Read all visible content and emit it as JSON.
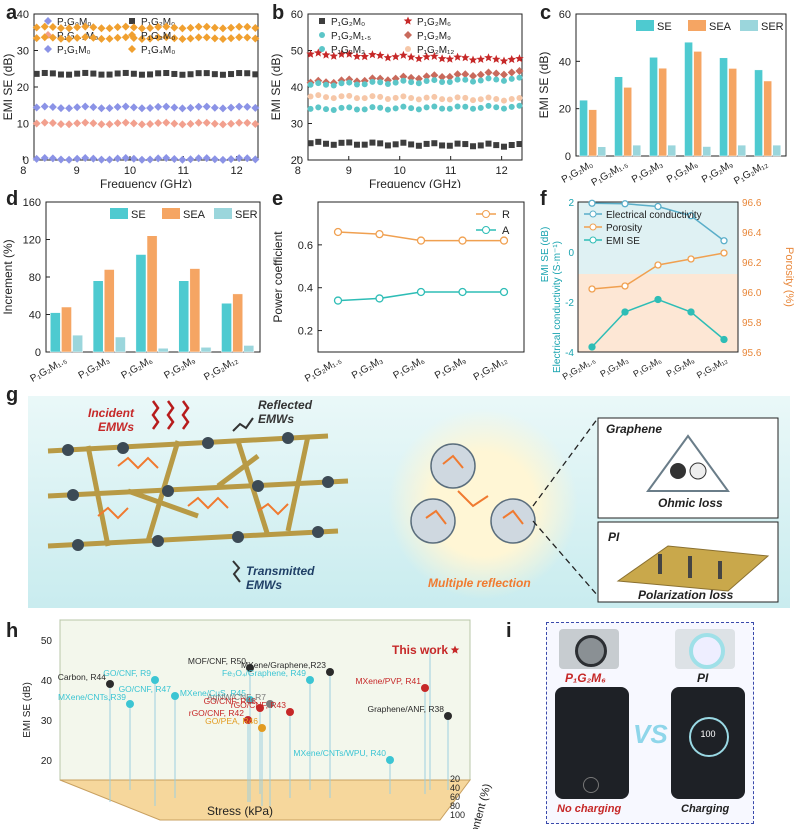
{
  "panel_labels": {
    "a": "a",
    "b": "b",
    "c": "c",
    "d": "d",
    "e": "e",
    "f": "f",
    "g": "g",
    "h": "h",
    "i": "i"
  },
  "colors": {
    "diamond_blue": "#8b93e6",
    "square_dark": "#3d3d3d",
    "diamond_pink": "#f2a08e",
    "diamond_orange": "#f0a030",
    "star_red": "#c62828",
    "teal": "#5cc6c8",
    "rose": "#c96a5c",
    "peach": "#f6c7a8",
    "se": "#4ecad0",
    "sea": "#f5a563",
    "ser": "#9bd6dc",
    "r_orange": "#f0a050",
    "a_teal": "#2ebdb6",
    "h_dark": "#2b2b2b",
    "h_red": "#c62828",
    "h_cyan": "#3cc5d3",
    "h_orange": "#e29b20",
    "h_grey": "#7a7a7a"
  },
  "chart_data": [
    {
      "id": "a",
      "type": "scatter",
      "xlabel": "Frequency (GHz)",
      "ylabel": "EMI SE (dB)",
      "xlim": [
        8.2,
        12.4
      ],
      "ylim": [
        0,
        40
      ],
      "xticks": [
        "8",
        "9",
        "10",
        "11",
        "12"
      ],
      "yticks": [
        "0",
        "10",
        "20",
        "30",
        "40"
      ],
      "series": [
        {
          "name": "P₁G₀M₀",
          "values": [
            0.3
          ],
          "marker": "diamond",
          "color": "#8b93e6"
        },
        {
          "name": "P₁G₂M₀",
          "values": [
            23.6
          ],
          "marker": "square",
          "color": "#3d3d3d"
        },
        {
          "name": "P₁G₀.₅M₀",
          "values": [
            10.0
          ],
          "marker": "diamond",
          "color": "#f2a08e"
        },
        {
          "name": "P₁G₃M₀",
          "values": [
            33.4
          ],
          "marker": "diamond",
          "color": "#f0a030"
        },
        {
          "name": "P₁G₁M₀",
          "values": [
            14.4
          ],
          "marker": "diamond",
          "color": "#8b93e6"
        },
        {
          "name": "P₁G₄M₀",
          "values": [
            36.3
          ],
          "marker": "diamond",
          "color": "#f0a030"
        }
      ]
    },
    {
      "id": "b",
      "type": "scatter",
      "xlabel": "Frequency (GHz)",
      "ylabel": "EMI SE (dB)",
      "xlim": [
        8.2,
        12.4
      ],
      "ylim": [
        20,
        60
      ],
      "xticks": [
        "8",
        "9",
        "10",
        "11",
        "12"
      ],
      "yticks": [
        "20",
        "30",
        "40",
        "50",
        "60"
      ],
      "series": [
        {
          "name": "P₁G₂M₀",
          "start": 24.6,
          "end": 24.0,
          "marker": "square",
          "color": "#3d3d3d"
        },
        {
          "name": "P₁G₂M₆",
          "start": 49.0,
          "end": 47.4,
          "marker": "star",
          "color": "#c62828"
        },
        {
          "name": "P₁G₂M₁.₅",
          "start": 34.0,
          "end": 34.5,
          "marker": "circle",
          "color": "#5cc6c8"
        },
        {
          "name": "P₁G₂M₉",
          "start": 41.2,
          "end": 44.0,
          "marker": "diamond",
          "color": "#c96a5c"
        },
        {
          "name": "P₁G₂M₃",
          "start": 40.6,
          "end": 42.2,
          "marker": "circle",
          "color": "#5cc6c8"
        },
        {
          "name": "P₁G₂M₁₂",
          "start": 37.4,
          "end": 36.6,
          "marker": "circle",
          "color": "#f6c7a8"
        }
      ]
    },
    {
      "id": "c",
      "type": "bar",
      "ylabel": "EMI SE (dB)",
      "ylim": [
        0,
        60
      ],
      "yticks": [
        "0",
        "20",
        "40",
        "60"
      ],
      "categories": [
        "P₁G₂M₀",
        "P₁G₂M₁.₅",
        "P₁G₂M₃",
        "P₁G₂M₆",
        "P₁G₂M₉",
        "P₁G₂M₁₂"
      ],
      "series": [
        {
          "name": "SE",
          "values": [
            23.6,
            33.5,
            41.7,
            48.1,
            41.5,
            36.4
          ]
        },
        {
          "name": "SEA",
          "values": [
            19.6,
            29.0,
            37.1,
            44.2,
            37.0,
            31.7
          ]
        },
        {
          "name": "SER",
          "values": [
            3.9,
            4.6,
            4.6,
            4.0,
            4.6,
            4.6
          ]
        }
      ]
    },
    {
      "id": "d",
      "type": "bar",
      "ylabel": "Increment (%)",
      "ylim": [
        0,
        160
      ],
      "yticks": [
        "0",
        "40",
        "80",
        "120",
        "160"
      ],
      "categories": [
        "P₁G₂M₁.₅",
        "P₁G₂M₃",
        "P₁G₂M₆",
        "P₁G₂M₉",
        "P₁G₂M₁₂"
      ],
      "series": [
        {
          "name": "SE",
          "values": [
            42,
            76,
            104,
            76,
            52
          ]
        },
        {
          "name": "SEA",
          "values": [
            48,
            88,
            124,
            89,
            62
          ]
        },
        {
          "name": "SER",
          "values": [
            18,
            16,
            4,
            5,
            7
          ]
        }
      ]
    },
    {
      "id": "e",
      "type": "line",
      "ylabel": "Power coefficient",
      "ylim": [
        0.1,
        0.8
      ],
      "yticks": [
        "0.2",
        "0.4",
        "0.6"
      ],
      "categories": [
        "P₁G₂M₁.₅",
        "P₁G₂M₃",
        "P₁G₂M₆",
        "P₁G₂M₉",
        "P₁G₂M₁₂"
      ],
      "series": [
        {
          "name": "R",
          "values": [
            0.66,
            0.65,
            0.62,
            0.62,
            0.62
          ]
        },
        {
          "name": "A",
          "values": [
            0.34,
            0.35,
            0.38,
            0.38,
            0.38
          ]
        }
      ]
    },
    {
      "id": "f",
      "type": "line",
      "ylabel": "Electrical conductivity (S·m⁻¹)",
      "ylabel2": "Porosity (%)",
      "ylabel3": "EMI SE (dB)",
      "ylim": [
        -4,
        2
      ],
      "yticks": [
        "-4",
        "-2",
        "0",
        "2"
      ],
      "ylim2": [
        95.6,
        96.6
      ],
      "yticks2": [
        "95.6",
        "95.8",
        "96.0",
        "96.2",
        "96.4",
        "96.6"
      ],
      "categories": [
        "P₁G₂M₁.₅",
        "P₁G₂M₃",
        "P₁G₂M₆",
        "P₁G₂M₉",
        "P₁G₂M₁₂"
      ],
      "series": [
        {
          "name": "Electrical conductivity",
          "values": [
            1.95,
            1.93,
            1.82,
            1.45,
            0.45
          ],
          "axis": "left"
        },
        {
          "name": "Porosity",
          "values": [
            96.02,
            96.04,
            96.18,
            96.22,
            96.26
          ],
          "axis": "right"
        },
        {
          "name": "EMI SE",
          "values": [
            -3.8,
            -2.4,
            -1.9,
            -2.4,
            -3.5
          ],
          "axis": "left"
        }
      ]
    },
    {
      "id": "h",
      "type": "scatter",
      "zlabel": "EMI SE (dB)",
      "xlabel": "Stress (kPa)",
      "ylabel": "Filler content (%)",
      "zticks": [
        "20",
        "30",
        "40",
        "50"
      ],
      "yticks": [
        "100",
        "80",
        "60",
        "40",
        "20"
      ],
      "points": [
        {
          "label": "This work",
          "value": 50,
          "color": "#c62828"
        },
        {
          "label": "MOF/CNF, R50",
          "value": 45,
          "color": "#2b2b2b"
        },
        {
          "label": "MXene/Graphene,R23",
          "value": 44,
          "color": "#2b2b2b"
        },
        {
          "label": "Carbon, R44",
          "value": 41,
          "color": "#2b2b2b"
        },
        {
          "label": "GO/CNF, R9",
          "value": 42,
          "color": "#3cc5d3"
        },
        {
          "label": "Fe₃O₄/Graphene, R49",
          "value": 42,
          "color": "#3cc5d3"
        },
        {
          "label": "MXene/PVP, R41",
          "value": 40,
          "color": "#c62828"
        },
        {
          "label": "GO/CNF, R47",
          "value": 38,
          "color": "#3cc5d3"
        },
        {
          "label": "MXene/CuS, R45",
          "value": 37,
          "color": "#3cc5d3"
        },
        {
          "label": "AgNW/CNF, R7",
          "value": 36,
          "color": "#7a7a7a"
        },
        {
          "label": "MXene/CNTs,R39",
          "value": 36,
          "color": "#3cc5d3"
        },
        {
          "label": "GO/CNF, R48",
          "value": 35,
          "color": "#c62828"
        },
        {
          "label": "rGO/CNF, R43",
          "value": 34,
          "color": "#c62828"
        },
        {
          "label": "rGO/CNF, R42",
          "value": 32,
          "color": "#c62828"
        },
        {
          "label": "GO/PEA, R46",
          "value": 30,
          "color": "#e29b20"
        },
        {
          "label": "Graphene/ANF, R38",
          "value": 33,
          "color": "#2b2b2b"
        },
        {
          "label": "MXene/CNTs/WPU, R40",
          "value": 22,
          "color": "#3cc5d3"
        }
      ]
    }
  ],
  "g": {
    "incident": "Incident\nEMWs",
    "reflected": "Reflected\nEMWs",
    "transmitted": "Transmitted\nEMWs",
    "multiple": "Multiple reflection",
    "graphene": "Graphene",
    "ohmic": "Ohmic loss",
    "pi": "PI",
    "polarization": "Polarization loss"
  },
  "i": {
    "left_label": "P₁G₂M₆",
    "right_label": "PI",
    "vs": "VS",
    "no_charging": "No charging",
    "charging": "Charging",
    "battery": "100"
  }
}
